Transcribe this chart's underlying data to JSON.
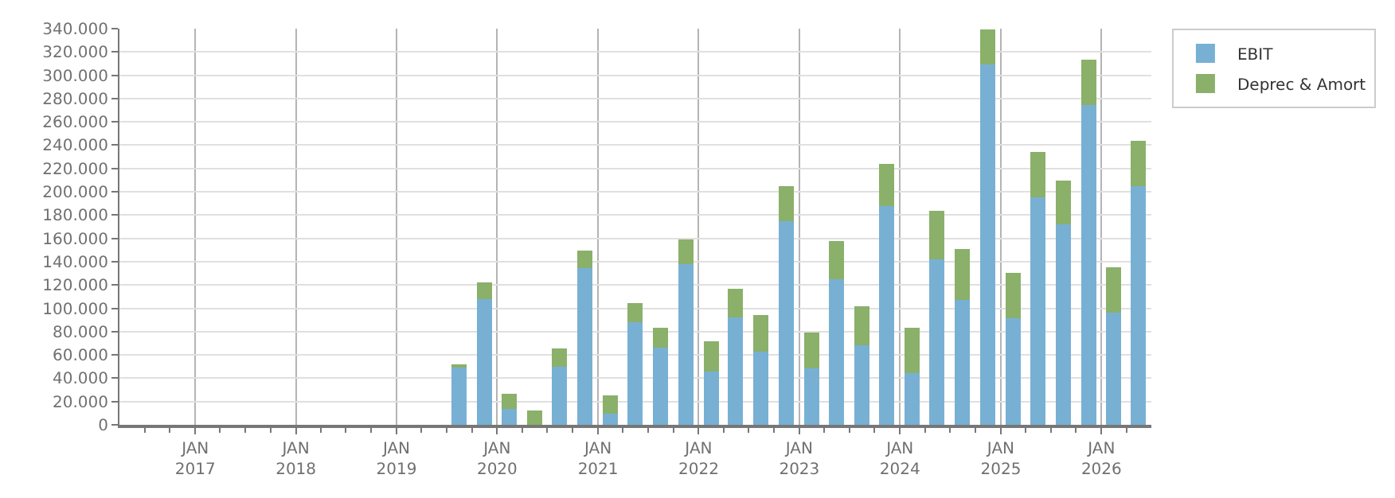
{
  "chart_data": {
    "type": "bar",
    "stacked": true,
    "x": [
      "2019-08-15",
      "2019-11-15",
      "2020-02-15",
      "2020-05-15",
      "2020-08-15",
      "2020-11-15",
      "2021-02-15",
      "2021-05-15",
      "2021-08-15",
      "2021-11-15",
      "2022-02-15",
      "2022-05-15",
      "2022-08-15",
      "2022-11-15",
      "2023-02-15",
      "2023-05-15",
      "2023-08-15",
      "2023-11-15",
      "2024-02-15",
      "2024-05-15",
      "2024-08-15",
      "2024-11-15",
      "2025-02-15",
      "2025-05-15",
      "2025-08-15",
      "2025-11-15",
      "2026-02-15",
      "2026-05-15"
    ],
    "series": [
      {
        "name": "EBIT",
        "color": "#78b0d4",
        "values": [
          50000,
          108000,
          13500,
          0,
          50000,
          134500,
          9500,
          88000,
          66500,
          138000,
          46000,
          92500,
          63000,
          174500,
          48500,
          125000,
          68000,
          187500,
          44500,
          142000,
          107000,
          309500,
          91500,
          195500,
          172000,
          274500,
          96500,
          204500
        ]
      },
      {
        "name": "Deprec & Amort",
        "color": "#8ab06a",
        "values": [
          1500,
          14500,
          13000,
          12000,
          15500,
          15000,
          15500,
          16500,
          17000,
          21000,
          26000,
          24500,
          31000,
          30000,
          31000,
          32500,
          34000,
          36500,
          39000,
          41500,
          44000,
          30000,
          39000,
          39000,
          37500,
          39000,
          39000,
          39000
        ]
      }
    ],
    "xlim": [
      "2016-04-01",
      "2026-07-01"
    ],
    "xticks": [
      {
        "value": "2016-07-01",
        "label": null
      },
      {
        "value": "2016-10-01",
        "label": null
      },
      {
        "value": "2017-01-01",
        "label": "JAN\n2017"
      },
      {
        "value": "2017-04-01",
        "label": null
      },
      {
        "value": "2017-07-01",
        "label": null
      },
      {
        "value": "2017-10-01",
        "label": null
      },
      {
        "value": "2018-01-01",
        "label": "JAN\n2018"
      },
      {
        "value": "2018-04-01",
        "label": null
      },
      {
        "value": "2018-07-01",
        "label": null
      },
      {
        "value": "2018-10-01",
        "label": null
      },
      {
        "value": "2019-01-01",
        "label": "JAN\n2019"
      },
      {
        "value": "2019-04-01",
        "label": null
      },
      {
        "value": "2019-07-01",
        "label": null
      },
      {
        "value": "2019-10-01",
        "label": null
      },
      {
        "value": "2020-01-01",
        "label": "JAN\n2020"
      },
      {
        "value": "2020-04-01",
        "label": null
      },
      {
        "value": "2020-07-01",
        "label": null
      },
      {
        "value": "2020-10-01",
        "label": null
      },
      {
        "value": "2021-01-01",
        "label": "JAN\n2021"
      },
      {
        "value": "2021-04-01",
        "label": null
      },
      {
        "value": "2021-07-01",
        "label": null
      },
      {
        "value": "2021-10-01",
        "label": null
      },
      {
        "value": "2022-01-01",
        "label": "JAN\n2022"
      },
      {
        "value": "2022-04-01",
        "label": null
      },
      {
        "value": "2022-07-01",
        "label": null
      },
      {
        "value": "2022-10-01",
        "label": null
      },
      {
        "value": "2023-01-01",
        "label": "JAN\n2023"
      },
      {
        "value": "2023-04-01",
        "label": null
      },
      {
        "value": "2023-07-01",
        "label": null
      },
      {
        "value": "2023-10-01",
        "label": null
      },
      {
        "value": "2024-01-01",
        "label": "JAN\n2024"
      },
      {
        "value": "2024-04-01",
        "label": null
      },
      {
        "value": "2024-07-01",
        "label": null
      },
      {
        "value": "2024-10-01",
        "label": null
      },
      {
        "value": "2025-01-01",
        "label": "JAN\n2025"
      },
      {
        "value": "2025-04-01",
        "label": null
      },
      {
        "value": "2025-07-01",
        "label": null
      },
      {
        "value": "2025-10-01",
        "label": null
      },
      {
        "value": "2026-01-01",
        "label": "JAN\n2026"
      },
      {
        "value": "2026-04-01",
        "label": null
      }
    ],
    "ylim": [
      0,
      340000
    ],
    "yticks": [
      {
        "value": 0,
        "label": "0"
      },
      {
        "value": 20000,
        "label": "20.000"
      },
      {
        "value": 40000,
        "label": "40.000"
      },
      {
        "value": 60000,
        "label": "60.000"
      },
      {
        "value": 80000,
        "label": "80.000"
      },
      {
        "value": 100000,
        "label": "100.000"
      },
      {
        "value": 120000,
        "label": "120.000"
      },
      {
        "value": 140000,
        "label": "140.000"
      },
      {
        "value": 160000,
        "label": "160.000"
      },
      {
        "value": 180000,
        "label": "180.000"
      },
      {
        "value": 200000,
        "label": "200.000"
      },
      {
        "value": 220000,
        "label": "220.000"
      },
      {
        "value": 240000,
        "label": "240.000"
      },
      {
        "value": 260000,
        "label": "260.000"
      },
      {
        "value": 280000,
        "label": "280.000"
      },
      {
        "value": 300000,
        "label": "300.000"
      },
      {
        "value": 320000,
        "label": "320.000"
      },
      {
        "value": 340000,
        "label": "340.000"
      }
    ],
    "grid": true,
    "legend": "top right"
  }
}
